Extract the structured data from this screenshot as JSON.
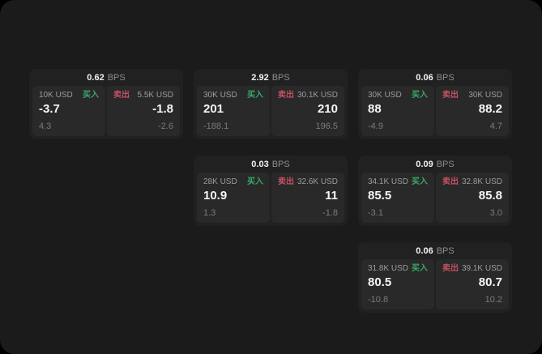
{
  "labels": {
    "bps_suffix": "BPS",
    "buy": "买入",
    "sell": "卖出"
  },
  "colors": {
    "buy_green": "#3aa86a",
    "sell_red": "#c25063",
    "window_bg": "#1a1b1a",
    "card_bg": "#212121",
    "panel_bg": "#292929"
  },
  "cards": [
    {
      "bps": "0.62",
      "buy": {
        "amount": "10K USD",
        "value": "-3.7",
        "sub": "4.3"
      },
      "sell": {
        "amount": "5.5K USD",
        "value": "-1.8",
        "sub": "-2.6"
      }
    },
    {
      "bps": "2.92",
      "buy": {
        "amount": "30K USD",
        "value": "201",
        "sub": "-188.1"
      },
      "sell": {
        "amount": "30.1K USD",
        "value": "210",
        "sub": "196.5"
      }
    },
    {
      "bps": "0.06",
      "buy": {
        "amount": "30K USD",
        "value": "88",
        "sub": "-4.9"
      },
      "sell": {
        "amount": "30K USD",
        "value": "88.2",
        "sub": "4.7"
      }
    },
    {
      "bps": "0.03",
      "buy": {
        "amount": "28K USD",
        "value": "10.9",
        "sub": "1.3"
      },
      "sell": {
        "amount": "32.6K USD",
        "value": "11",
        "sub": "-1.8"
      }
    },
    {
      "bps": "0.09",
      "buy": {
        "amount": "34.1K USD",
        "value": "85.5",
        "sub": "-3.1"
      },
      "sell": {
        "amount": "32.8K USD",
        "value": "85.8",
        "sub": "3.0"
      }
    },
    {
      "bps": "0.06",
      "buy": {
        "amount": "31.8K USD",
        "value": "80.5",
        "sub": "-10.8"
      },
      "sell": {
        "amount": "39.1K USD",
        "value": "80.7",
        "sub": "10.2"
      }
    }
  ]
}
